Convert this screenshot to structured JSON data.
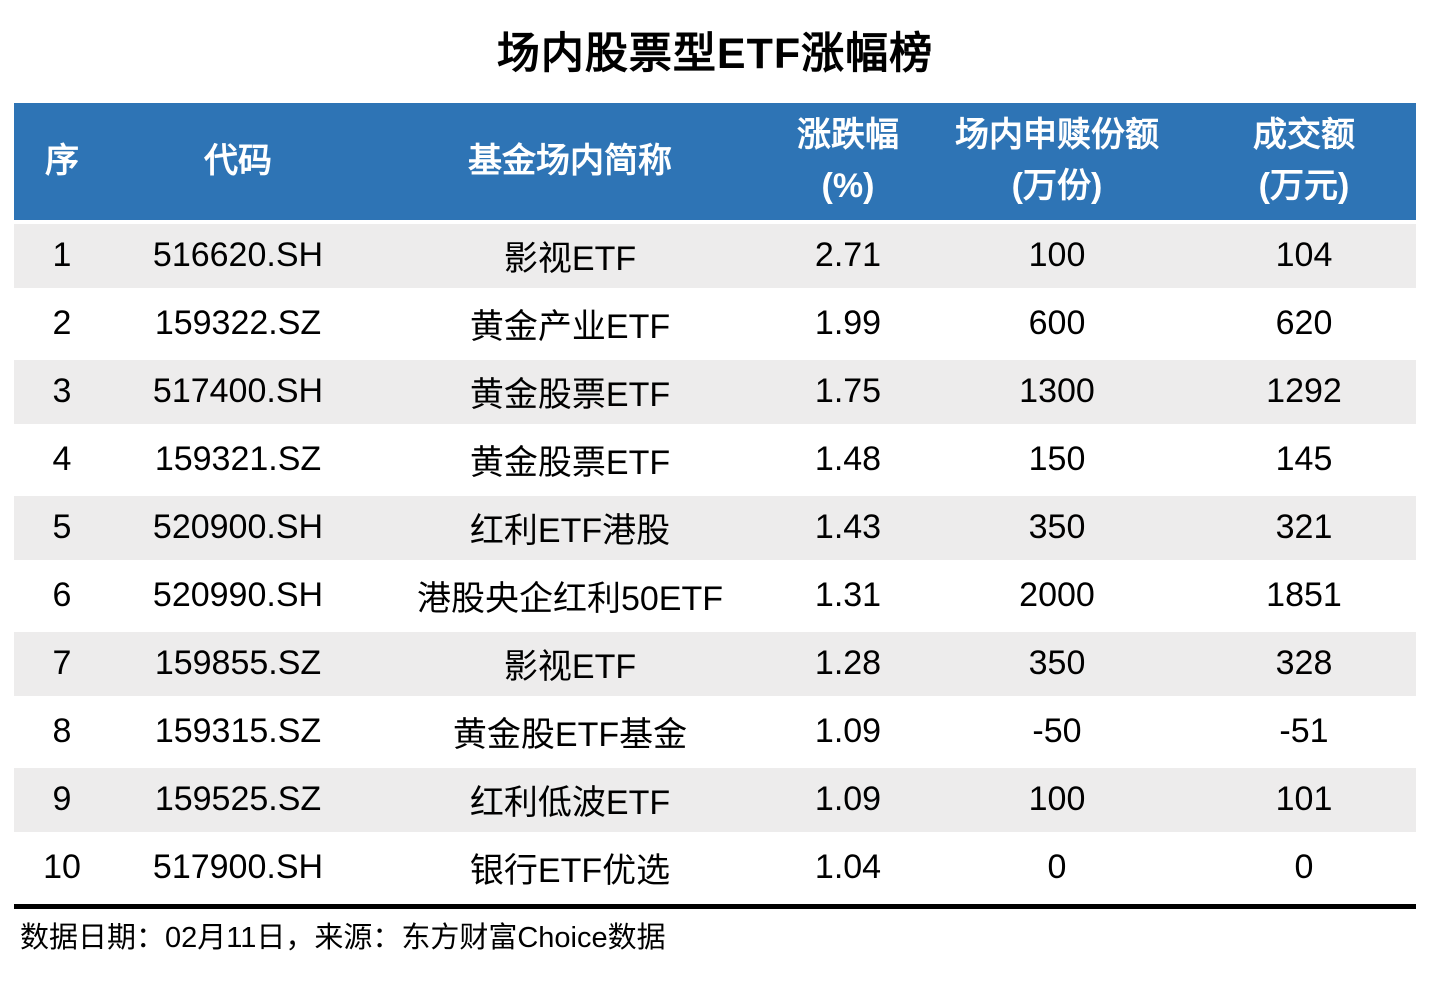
{
  "page": {
    "title": "场内股票型ETF涨幅榜"
  },
  "colors": {
    "header_bg": "#2E74B5",
    "header_text": "#FFFFFF",
    "row_alt_bg": "#EDECEC",
    "row_bg": "#FFFFFF",
    "bottom_rule": "#000000",
    "body_text": "#000000"
  },
  "table": {
    "columns": [
      {
        "id": "rank",
        "line1": "序",
        "line2": ""
      },
      {
        "id": "code",
        "line1": "代码",
        "line2": ""
      },
      {
        "id": "name",
        "line1": "基金场内简称",
        "line2": ""
      },
      {
        "id": "change",
        "line1": "涨跌幅",
        "line2": "(%)"
      },
      {
        "id": "shares",
        "line1": "场内申赎份额",
        "line2": "(万份)"
      },
      {
        "id": "turnover",
        "line1": "成交额",
        "line2": "(万元)"
      }
    ],
    "rows": [
      [
        "1",
        "516620.SH",
        "影视ETF",
        "2.71",
        "100",
        "104"
      ],
      [
        "2",
        "159322.SZ",
        "黄金产业ETF",
        "1.99",
        "600",
        "620"
      ],
      [
        "3",
        "517400.SH",
        "黄金股票ETF",
        "1.75",
        "1300",
        "1292"
      ],
      [
        "4",
        "159321.SZ",
        "黄金股票ETF",
        "1.48",
        "150",
        "145"
      ],
      [
        "5",
        "520900.SH",
        "红利ETF港股",
        "1.43",
        "350",
        "321"
      ],
      [
        "6",
        "520990.SH",
        "港股央企红利50ETF",
        "1.31",
        "2000",
        "1851"
      ],
      [
        "7",
        "159855.SZ",
        "影视ETF",
        "1.28",
        "350",
        "328"
      ],
      [
        "8",
        "159315.SZ",
        "黄金股ETF基金",
        "1.09",
        "-50",
        "-51"
      ],
      [
        "9",
        "159525.SZ",
        "红利低波ETF",
        "1.09",
        "100",
        "101"
      ],
      [
        "10",
        "517900.SH",
        "银行ETF优选",
        "1.04",
        "0",
        "0"
      ]
    ]
  },
  "footer": {
    "text": "数据日期：02月11日，来源：东方财富Choice数据"
  },
  "chart_data": {
    "type": "table",
    "title": "场内股票型ETF涨幅榜",
    "columns": [
      "序",
      "代码",
      "基金场内简称",
      "涨跌幅(%)",
      "场内申赎份额(万份)",
      "成交额(万元)"
    ],
    "rows": [
      [
        1,
        "516620.SH",
        "影视ETF",
        2.71,
        100,
        104
      ],
      [
        2,
        "159322.SZ",
        "黄金产业ETF",
        1.99,
        600,
        620
      ],
      [
        3,
        "517400.SH",
        "黄金股票ETF",
        1.75,
        1300,
        1292
      ],
      [
        4,
        "159321.SZ",
        "黄金股票ETF",
        1.48,
        150,
        145
      ],
      [
        5,
        "520900.SH",
        "红利ETF港股",
        1.43,
        350,
        321
      ],
      [
        6,
        "520990.SH",
        "港股央企红利50ETF",
        1.31,
        2000,
        1851
      ],
      [
        7,
        "159855.SZ",
        "影视ETF",
        1.28,
        350,
        328
      ],
      [
        8,
        "159315.SZ",
        "黄金股ETF基金",
        1.09,
        -50,
        -51
      ],
      [
        9,
        "159525.SZ",
        "红利低波ETF",
        1.09,
        100,
        101
      ],
      [
        10,
        "517900.SH",
        "银行ETF优选",
        1.04,
        0,
        0
      ]
    ],
    "source_note": "数据日期：02月11日，来源：东方财富Choice数据"
  }
}
